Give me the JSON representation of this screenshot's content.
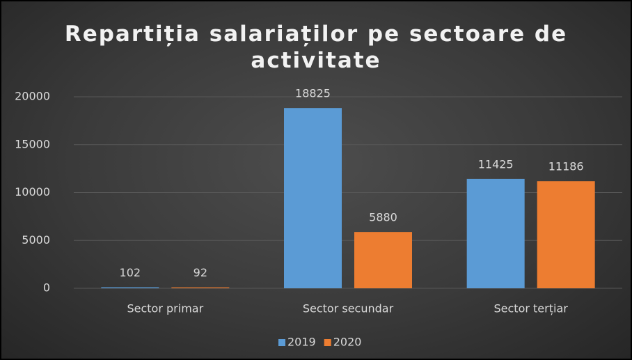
{
  "chart_data": {
    "type": "bar",
    "title": "Repartiția salariaților pe sectoare de activitate",
    "categories": [
      "Sector primar",
      "Sector secundar",
      "Sector terțiar"
    ],
    "series": [
      {
        "name": "2019",
        "color": "#5b9bd5",
        "values": [
          102,
          18825,
          11425
        ]
      },
      {
        "name": "2020",
        "color": "#ed7d31",
        "values": [
          92,
          5880,
          11186
        ]
      }
    ],
    "ylim": [
      0,
      20000
    ],
    "yticks": [
      0,
      5000,
      10000,
      15000,
      20000
    ],
    "grid": true,
    "legend": "bottom"
  }
}
